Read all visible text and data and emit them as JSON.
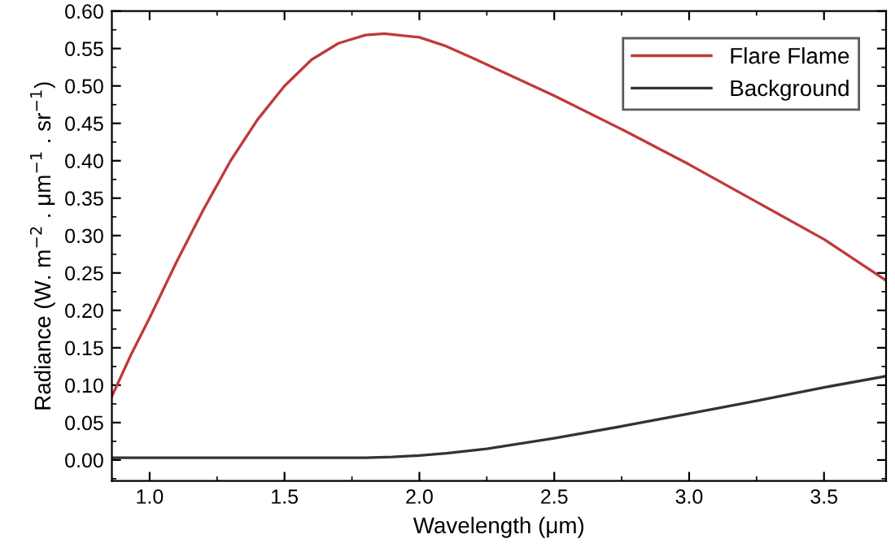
{
  "chart_data": {
    "type": "line",
    "xlabel": "Wavelength (μm)",
    "ylabel": "Radiance (W. m$^{−2}$ . μm$^{−1}$ . sr$^{−1}$)",
    "xlim": [
      0.86,
      3.73
    ],
    "xticks": [
      {
        "value": 1,
        "label": "1.0"
      },
      1.5,
      {
        "value": 2,
        "label": "2.0"
      },
      2.5,
      {
        "value": 3,
        "label": "3.0"
      },
      3.5
    ],
    "ylim": [
      -0.028,
      0.6
    ],
    "yticks": [
      {
        "value": 0,
        "label": "0.00"
      },
      0.05,
      {
        "value": 0.1,
        "label": "0.10"
      },
      0.15,
      {
        "value": 0.2,
        "label": "0.20"
      },
      0.25,
      {
        "value": 0.3,
        "label": "0.30"
      },
      0.35,
      {
        "value": 0.4,
        "label": "0.40"
      },
      0.45,
      {
        "value": 0.5,
        "label": "0.50"
      },
      0.55,
      {
        "value": 0.6,
        "label": "0.60"
      }
    ],
    "grid": false,
    "legend": "top right",
    "line_style": "solid",
    "marker": "none",
    "series": [
      {
        "name": "Flare Flame",
        "color": "#c0393b",
        "x": [
          0.86,
          0.93,
          1.0,
          1.1,
          1.2,
          1.3,
          1.4,
          1.5,
          1.6,
          1.7,
          1.8,
          1.87,
          2.0,
          2.1,
          2.2,
          2.35,
          2.5,
          2.75,
          3.0,
          3.25,
          3.5,
          3.73
        ],
        "values": [
          0.085,
          0.14,
          0.19,
          0.265,
          0.335,
          0.4,
          0.455,
          0.5,
          0.535,
          0.557,
          0.568,
          0.57,
          0.565,
          0.553,
          0.537,
          0.512,
          0.487,
          0.442,
          0.395,
          0.345,
          0.295,
          0.24
        ]
      },
      {
        "name": "Background",
        "color": "#333333",
        "x": [
          0.86,
          1.2,
          1.5,
          1.8,
          1.9,
          2.0,
          2.1,
          2.25,
          2.5,
          2.75,
          3.0,
          3.25,
          3.5,
          3.73
        ],
        "values": [
          0.003,
          0.003,
          0.003,
          0.003,
          0.004,
          0.006,
          0.009,
          0.015,
          0.029,
          0.045,
          0.062,
          0.079,
          0.097,
          0.112
        ]
      }
    ]
  }
}
